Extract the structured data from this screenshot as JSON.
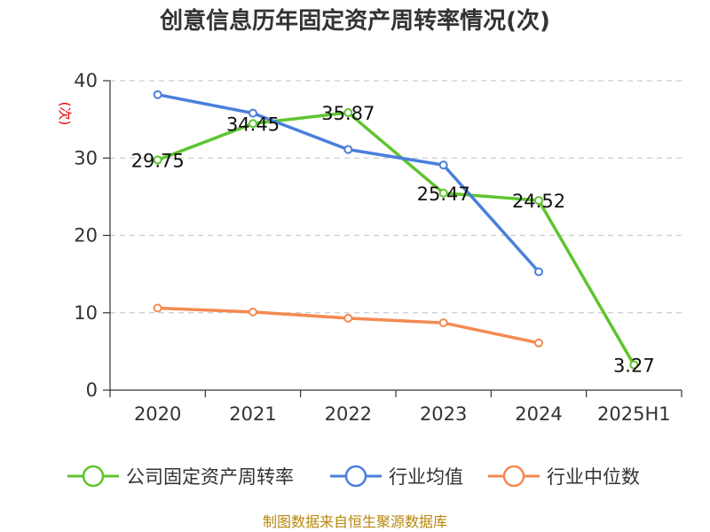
{
  "chart_data": {
    "type": "line",
    "title": "创意信息历年固定资产周转率情况(次)",
    "ylabel": "(次)",
    "xlabel": "",
    "categories": [
      "2020",
      "2021",
      "2022",
      "2023",
      "2024",
      "2025H1"
    ],
    "ylim": [
      0,
      40
    ],
    "yticks": [
      0,
      10,
      20,
      30,
      40
    ],
    "grid": true,
    "legend_position": "bottom",
    "series": [
      {
        "name": "公司固定资产周转率",
        "color": "#5fc430",
        "values": [
          29.75,
          34.45,
          35.87,
          25.47,
          24.52,
          3.27
        ],
        "labels": [
          "29.75",
          "34.45",
          "35.87",
          "25.47",
          "24.52",
          "3.27"
        ]
      },
      {
        "name": "行业均值",
        "color": "#4a7fdc",
        "values": [
          38.2,
          35.8,
          31.1,
          29.1,
          15.3,
          null
        ]
      },
      {
        "name": "行业中位数",
        "color": "#f48a52",
        "values": [
          10.6,
          10.1,
          9.3,
          8.7,
          6.1,
          null
        ]
      }
    ]
  },
  "source": "制图数据来自恒生聚源数据库"
}
